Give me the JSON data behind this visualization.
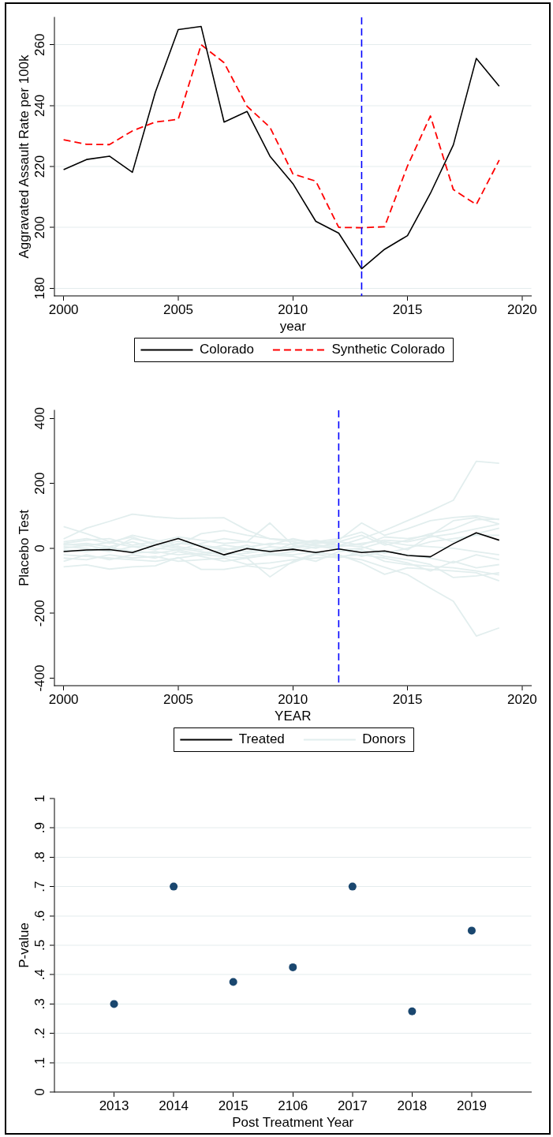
{
  "chart_data": [
    {
      "type": "line",
      "xlabel": "year",
      "ylabel": "Aggravated Assault Rate per 100k",
      "x": [
        2000,
        2001,
        2002,
        2003,
        2004,
        2005,
        2006,
        2007,
        2008,
        2009,
        2010,
        2011,
        2012,
        2013,
        2014,
        2015,
        2016,
        2017,
        2018,
        2019
      ],
      "series": [
        {
          "name": "Colorado",
          "color": "#000000",
          "line_style": "solid",
          "values": [
            219.0,
            222.3,
            223.4,
            218.1,
            244.4,
            265.0,
            266.0,
            234.6,
            238.1,
            223.4,
            214.4,
            202.0,
            198.1,
            186.4,
            192.8,
            197.3,
            211.2,
            227.1,
            255.5,
            246.4
          ]
        },
        {
          "name": "Synthetic Colorado",
          "color": "#ff0000",
          "line_style": "dashed",
          "values": [
            228.8,
            227.3,
            227.2,
            231.7,
            234.6,
            235.5,
            260.0,
            254.1,
            239.8,
            232.9,
            217.6,
            215.2,
            200.0,
            199.9,
            200.2,
            220.2,
            236.6,
            212.4,
            207.5,
            222.1
          ]
        }
      ],
      "xlim": [
        1999.6,
        2020.4
      ],
      "xticks": [
        2000,
        2005,
        2010,
        2015,
        2020
      ],
      "ylim": [
        177.5,
        269
      ],
      "yticks": [
        180,
        200,
        220,
        240,
        260
      ],
      "ref_lines": [
        {
          "axis": "x",
          "value": 2013,
          "color": "#0000ff",
          "line_style": "dashed"
        }
      ],
      "grid": "y",
      "legend": "bottom"
    },
    {
      "type": "line",
      "xlabel": "YEAR",
      "ylabel": "Placebo Test",
      "x": [
        2000,
        2001,
        2002,
        2003,
        2004,
        2005,
        2006,
        2007,
        2008,
        2009,
        2010,
        2011,
        2012,
        2013,
        2014,
        2015,
        2016,
        2017,
        2018,
        2019
      ],
      "series": [
        {
          "name": "Treated",
          "color": "#000000",
          "line_style": "solid",
          "values": [
            -10,
            -5,
            -4,
            -13,
            10,
            30,
            5,
            -20,
            -1,
            -10,
            -3,
            -13,
            -2,
            -13,
            -8,
            -22,
            -26,
            14,
            48,
            25
          ]
        },
        {
          "name": "Donors",
          "color": "#e2eeee",
          "values": [
            12,
            8,
            18,
            5,
            10,
            22,
            8,
            -5,
            3,
            15,
            12,
            20,
            8,
            30,
            55,
            85,
            115,
            148,
            268,
            262
          ]
        },
        {
          "color": "#e2eeee",
          "values": [
            -5,
            -10,
            0,
            -8,
            -15,
            -5,
            -20,
            -10,
            -25,
            -15,
            -20,
            -10,
            -25,
            -35,
            -58,
            -81,
            -123,
            -163,
            -270,
            -245
          ]
        },
        {
          "color": "#e2eeee",
          "values": [
            29,
            62,
            83,
            105,
            97,
            92,
            93,
            94,
            56,
            29,
            20,
            10,
            5,
            15,
            25,
            20,
            35,
            45,
            60,
            75
          ]
        },
        {
          "color": "#e2eeee",
          "values": [
            67,
            45,
            20,
            35,
            10,
            0,
            -10,
            -20,
            -15,
            -5,
            5,
            15,
            25,
            78,
            40,
            60,
            85,
            95,
            100,
            88
          ]
        },
        {
          "color": "#e2eeee",
          "values": [
            -57,
            -51,
            -64,
            -57,
            -54,
            -28,
            -65,
            -65,
            -54,
            -63,
            -44,
            -19,
            -30,
            -10,
            -40,
            -50,
            -55,
            -60,
            -70,
            -82
          ]
        },
        {
          "color": "#e2eeee",
          "values": [
            10,
            15,
            5,
            20,
            0,
            -5,
            15,
            30,
            20,
            78,
            10,
            0,
            20,
            40,
            10,
            25,
            45,
            60,
            88,
            90
          ]
        },
        {
          "color": "#e2eeee",
          "values": [
            -20,
            -25,
            -30,
            -35,
            -40,
            -30,
            -20,
            -25,
            -30,
            -88,
            -40,
            -15,
            -20,
            -45,
            -80,
            -60,
            -65,
            -70,
            -75,
            -100
          ]
        },
        {
          "color": "#e2eeee",
          "values": [
            20,
            30,
            15,
            40,
            25,
            10,
            45,
            55,
            40,
            30,
            25,
            20,
            30,
            50,
            15,
            -5,
            40,
            85,
            95,
            75
          ]
        },
        {
          "color": "#e2eeee",
          "values": [
            -30,
            -35,
            -20,
            -30,
            -25,
            -40,
            -35,
            -30,
            -50,
            -45,
            -35,
            -30,
            -25,
            -20,
            -30,
            -45,
            -70,
            -40,
            -60,
            -50
          ]
        },
        {
          "color": "#e2eeee",
          "values": [
            5,
            0,
            -10,
            5,
            -5,
            15,
            10,
            0,
            -10,
            5,
            0,
            10,
            -5,
            0,
            20,
            10,
            5,
            0,
            -10,
            -20
          ]
        },
        {
          "color": "#e2eeee",
          "values": [
            -10,
            -5,
            5,
            -15,
            -10,
            -20,
            -15,
            -5,
            10,
            -20,
            -10,
            5,
            0,
            -25,
            -10,
            -20,
            -30,
            -45,
            -20,
            -35
          ]
        },
        {
          "color": "#e2eeee",
          "values": [
            15,
            25,
            30,
            10,
            20,
            35,
            25,
            15,
            20,
            10,
            30,
            15,
            20,
            10,
            35,
            30,
            40,
            20,
            45,
            62
          ]
        },
        {
          "color": "#e2eeee",
          "values": [
            -40,
            -20,
            -35,
            -20,
            -30,
            -10,
            -25,
            -40,
            -30,
            -20,
            -25,
            -40,
            -10,
            -5,
            -25,
            -35,
            -50,
            -90,
            -85,
            -75
          ]
        },
        {
          "color": "#e2eeee",
          "values": [
            0,
            10,
            -5,
            30,
            15,
            5,
            -5,
            10,
            0,
            -10,
            15,
            25,
            10,
            5,
            -15,
            0,
            20,
            30,
            40,
            40
          ]
        }
      ],
      "xlim": [
        1999.6,
        2020.4
      ],
      "xticks": [
        2000,
        2005,
        2010,
        2015,
        2020
      ],
      "ylim": [
        -423,
        425
      ],
      "yticks": [
        -400,
        -200,
        0,
        200,
        400
      ],
      "ref_lines": [
        {
          "axis": "x",
          "value": 2012,
          "color": "#0000ff",
          "line_style": "dashed"
        }
      ],
      "legend": "bottom"
    },
    {
      "type": "scatter",
      "xlabel": "Post Treatment Year",
      "ylabel": "P-value",
      "categories": [
        "2013",
        "2014",
        "2015",
        "2106",
        "2017",
        "2018",
        "2019"
      ],
      "values": [
        0.3,
        0.7,
        0.375,
        0.425,
        0.7,
        0.275,
        0.55
      ],
      "color": "#1a476f",
      "marker": "circle",
      "ylim": [
        0,
        1
      ],
      "yticks": [
        0,
        {
          "value": 0.1,
          "label": ".1"
        },
        {
          "value": 0.2,
          "label": ".2"
        },
        {
          "value": 0.3,
          "label": ".3"
        },
        {
          "value": 0.4,
          "label": ".4"
        },
        {
          "value": 0.5,
          "label": ".5"
        },
        {
          "value": 0.6,
          "label": ".6"
        },
        {
          "value": 0.7,
          "label": ".7"
        },
        {
          "value": 0.8,
          "label": ".8"
        },
        {
          "value": 0.9,
          "label": ".9"
        },
        1
      ],
      "grid": "y"
    }
  ]
}
